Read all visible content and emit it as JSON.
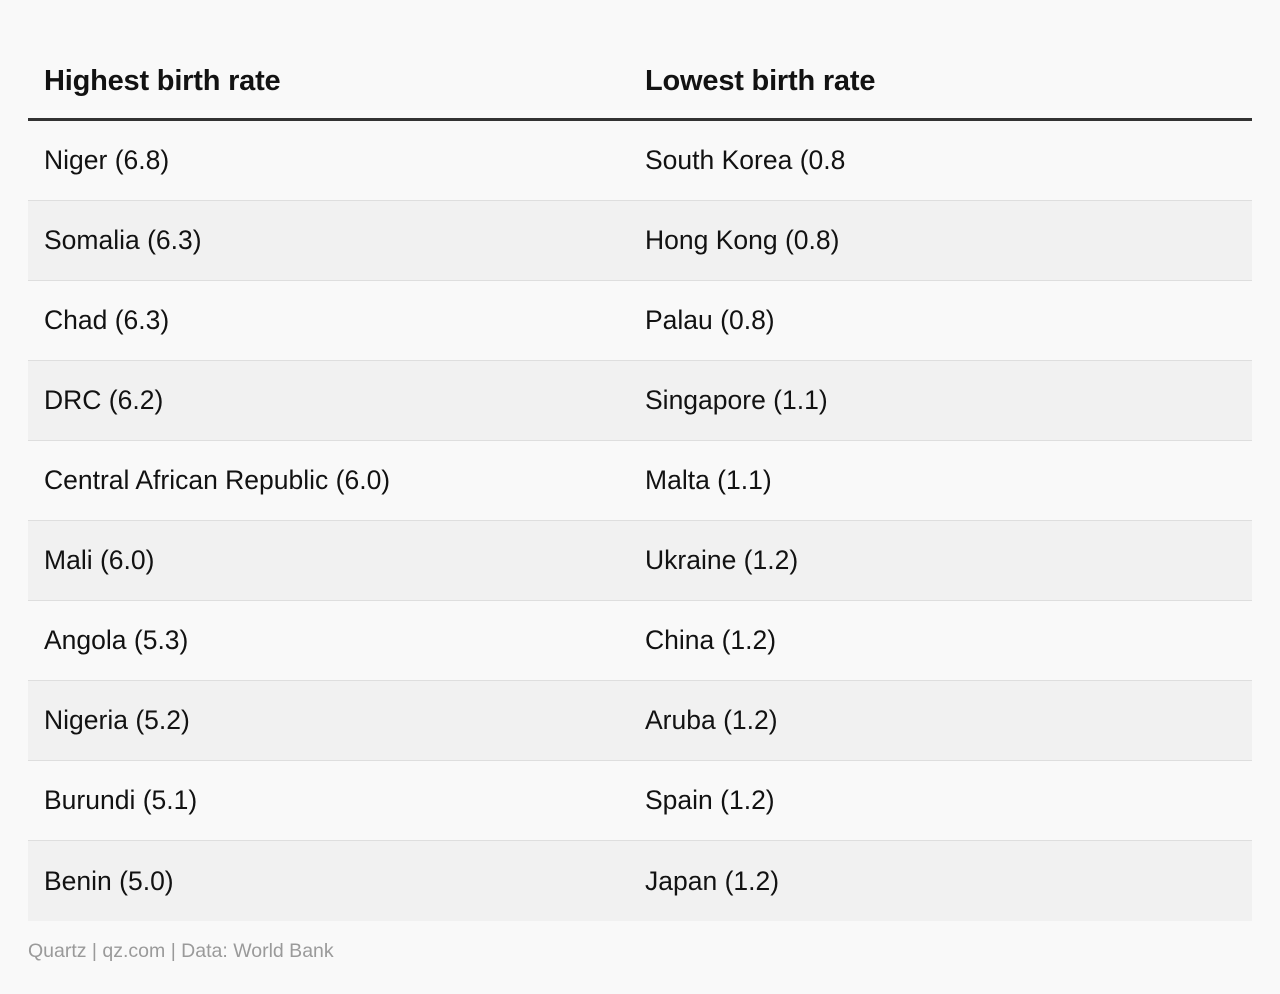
{
  "chart_data": {
    "type": "table",
    "columns": [
      "Highest birth rate",
      "Lowest birth rate"
    ],
    "rows": [
      [
        "Niger (6.8)",
        "South Korea (0.8"
      ],
      [
        "Somalia (6.3)",
        "Hong Kong (0.8)"
      ],
      [
        "Chad (6.3)",
        "Palau (0.8)"
      ],
      [
        "DRC (6.2)",
        "Singapore (1.1)"
      ],
      [
        "Central African Republic (6.0)",
        "Malta (1.1)"
      ],
      [
        "Mali (6.0)",
        "Ukraine (1.2)"
      ],
      [
        "Angola (5.3)",
        "China (1.2)"
      ],
      [
        "Nigeria (5.2)",
        "Aruba (1.2)"
      ],
      [
        "Burundi (5.1)",
        "Spain (1.2)"
      ],
      [
        "Benin (5.0)",
        "Japan (1.2)"
      ]
    ],
    "highest": {
      "countries": [
        "Niger",
        "Somalia",
        "Chad",
        "DRC",
        "Central African Republic",
        "Mali",
        "Angola",
        "Nigeria",
        "Burundi",
        "Benin"
      ],
      "values": [
        6.8,
        6.3,
        6.3,
        6.2,
        6.0,
        6.0,
        5.3,
        5.2,
        5.1,
        5.0
      ]
    },
    "lowest": {
      "countries": [
        "South Korea",
        "Hong Kong",
        "Palau",
        "Singapore",
        "Malta",
        "Ukraine",
        "China",
        "Aruba",
        "Spain",
        "Japan"
      ],
      "values": [
        0.8,
        0.8,
        0.8,
        1.1,
        1.1,
        1.2,
        1.2,
        1.2,
        1.2,
        1.2
      ]
    },
    "source": "Quartz | qz.com | Data: World Bank"
  },
  "colors": {
    "background": "#f9f9f9",
    "row_alt": "#f1f1f1",
    "header_rule": "#333333",
    "row_divider": "#dedede",
    "text": "#121212",
    "source_text": "#9a9a9a"
  }
}
